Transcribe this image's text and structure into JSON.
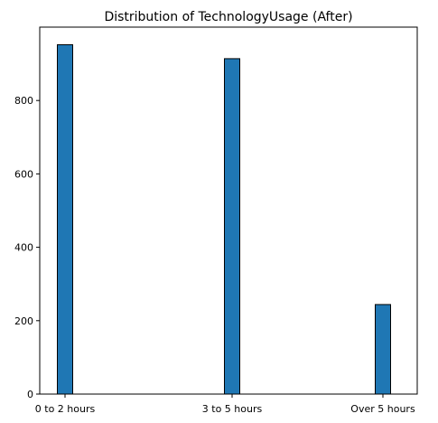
{
  "chart_data": {
    "type": "bar",
    "title": "Distribution of TechnologyUsage (After)",
    "xlabel": "",
    "ylabel": "",
    "categories": [
      "0 to 2 hours",
      "3 to 5 hours",
      "Over 5 hours"
    ],
    "values": [
      952,
      914,
      244
    ],
    "yticks": [
      0,
      200,
      400,
      600,
      800
    ],
    "ylim": [
      0,
      1000
    ],
    "grid": false,
    "legend": false
  },
  "colors": {
    "bar_fill": "#1f77b4",
    "bar_edge": "#000000",
    "axis": "#000000"
  }
}
